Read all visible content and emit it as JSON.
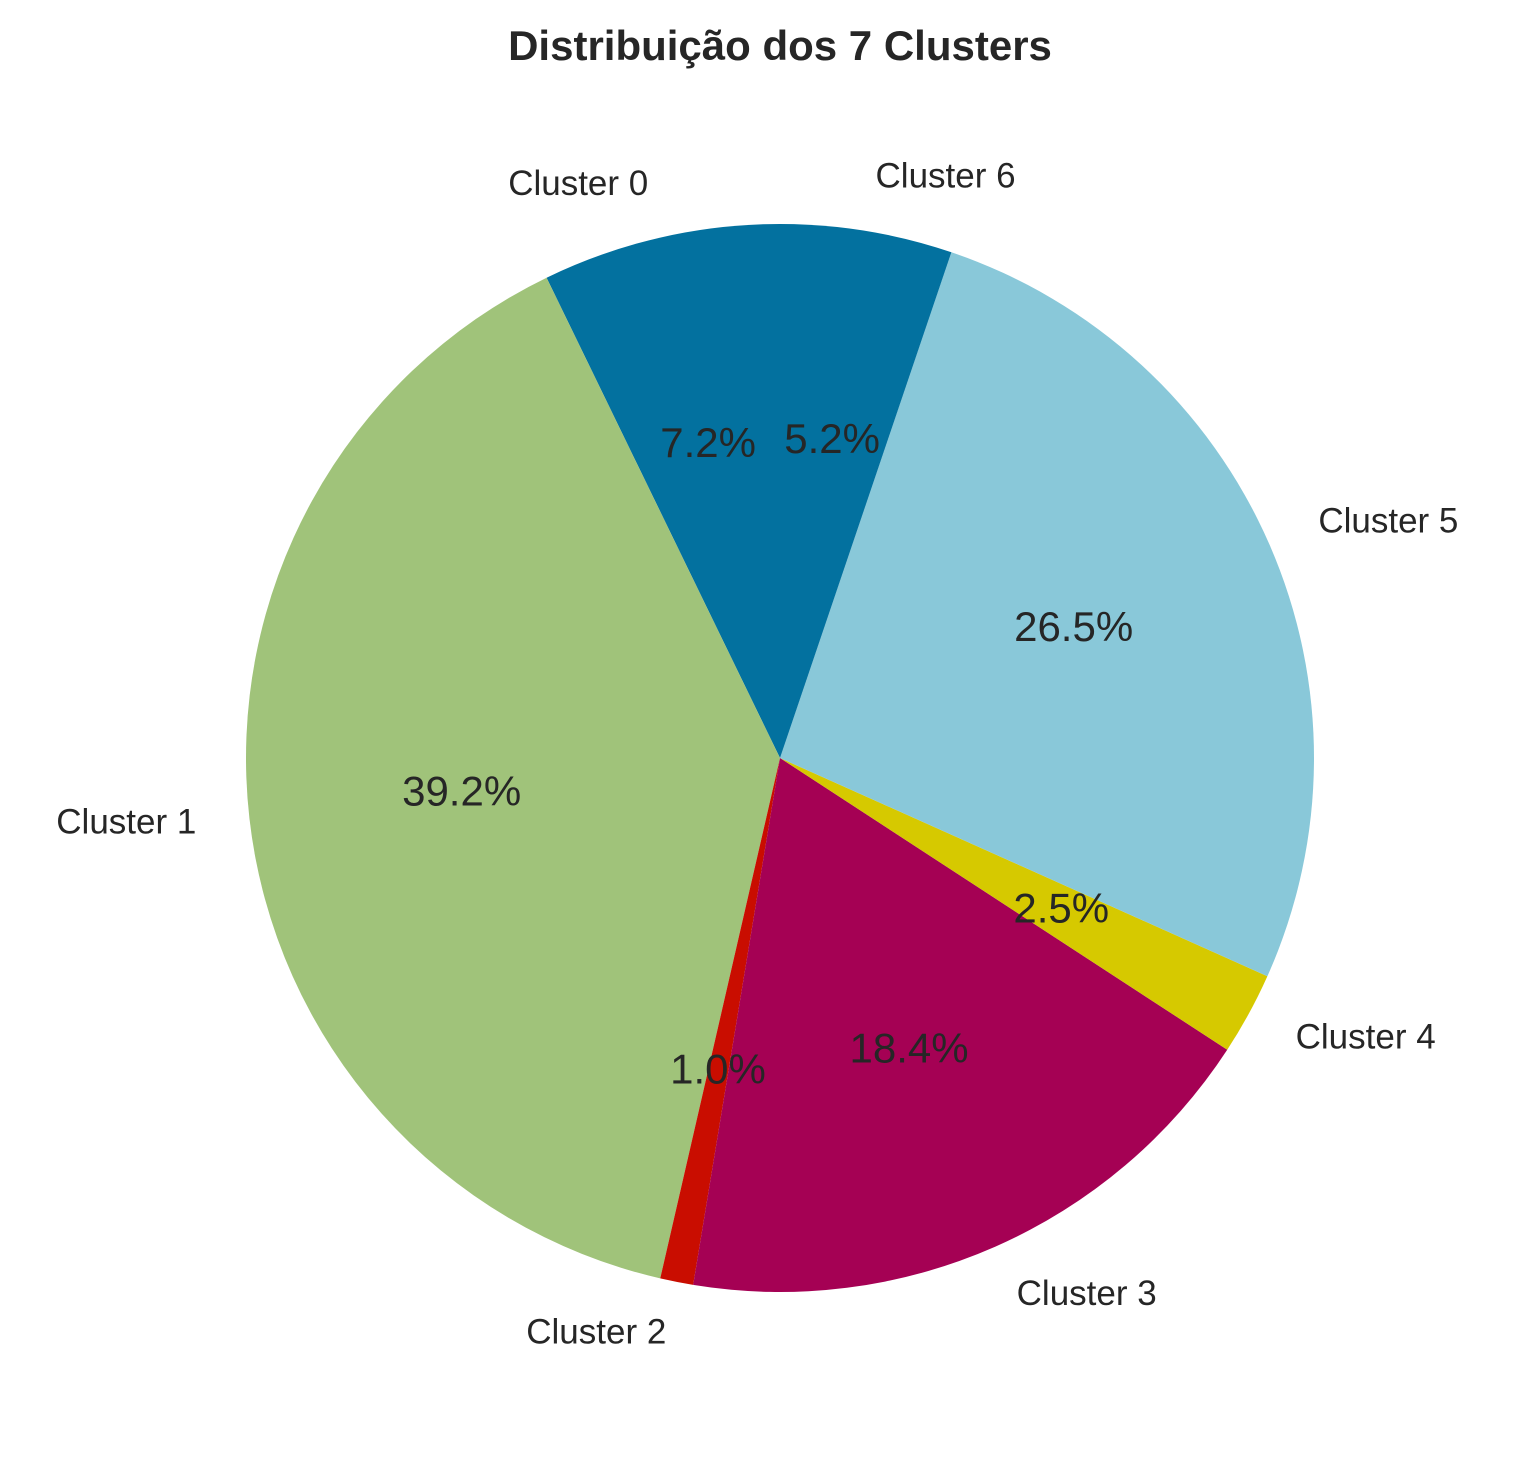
{
  "chart_data": {
    "type": "pie",
    "title": "Distribuição dos 7 Clusters",
    "start_angle_deg": 90,
    "direction": "counterclockwise",
    "slices": [
      {
        "label": "Cluster 0",
        "value": 7.2,
        "pct_label": "7.2%",
        "color": "#03719f"
      },
      {
        "label": "Cluster 1",
        "value": 39.2,
        "pct_label": "39.2%",
        "color": "#a0c37a"
      },
      {
        "label": "Cluster 2",
        "value": 1.0,
        "pct_label": "1.0%",
        "color": "#c90d00"
      },
      {
        "label": "Cluster 3",
        "value": 18.4,
        "pct_label": "18.4%",
        "color": "#a50154"
      },
      {
        "label": "Cluster 4",
        "value": 2.5,
        "pct_label": "2.5%",
        "color": "#d6c900"
      },
      {
        "label": "Cluster 5",
        "value": 26.5,
        "pct_label": "26.5%",
        "color": "#89c8d9"
      },
      {
        "label": "Cluster 6",
        "value": 5.2,
        "pct_label": "5.2%",
        "color": "#03719f"
      }
    ]
  }
}
